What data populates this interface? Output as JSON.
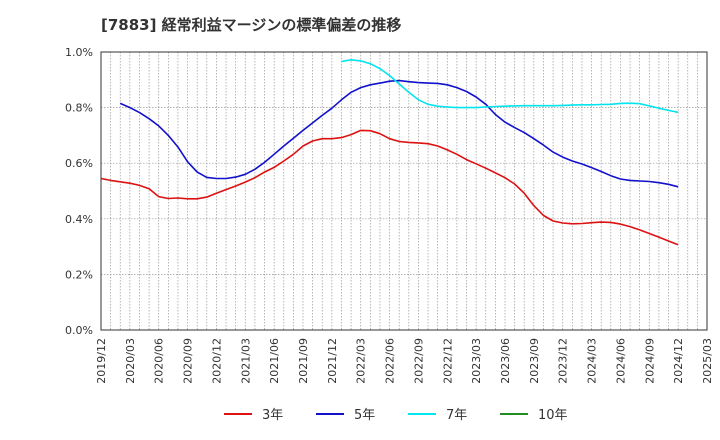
{
  "chart_data": {
    "type": "line",
    "title": "[7883]  経常利益マージンの標準偏差の推移",
    "xlabel": "",
    "ylabel": "",
    "ylim": [
      0,
      0.01
    ],
    "yticks": [
      "0.0%",
      "0.2%",
      "0.4%",
      "0.6%",
      "0.8%",
      "1.0%"
    ],
    "xticks": [
      "2019/12",
      "2020/03",
      "2020/06",
      "2020/09",
      "2020/12",
      "2021/03",
      "2021/06",
      "2021/09",
      "2021/12",
      "2022/03",
      "2022/06",
      "2022/09",
      "2022/12",
      "2023/03",
      "2023/06",
      "2023/09",
      "2023/12",
      "2024/03",
      "2024/06",
      "2024/09",
      "2024/12",
      "2025/03"
    ],
    "grid": true,
    "legend_position": "bottom",
    "series": [
      {
        "name": "3年",
        "color": "#dd1111",
        "points": [
          [
            "2019/12",
            0.00545
          ],
          [
            "2020/01",
            0.00538
          ],
          [
            "2020/02",
            0.00533
          ],
          [
            "2020/03",
            0.00528
          ],
          [
            "2020/04",
            0.0052
          ],
          [
            "2020/05",
            0.00508
          ],
          [
            "2020/06",
            0.0048
          ],
          [
            "2020/07",
            0.00473
          ],
          [
            "2020/08",
            0.00475
          ],
          [
            "2020/09",
            0.00472
          ],
          [
            "2020/10",
            0.00472
          ],
          [
            "2020/11",
            0.00478
          ],
          [
            "2020/12",
            0.00492
          ],
          [
            "2021/01",
            0.00505
          ],
          [
            "2021/02",
            0.00518
          ],
          [
            "2021/03",
            0.00532
          ],
          [
            "2021/04",
            0.00548
          ],
          [
            "2021/05",
            0.00568
          ],
          [
            "2021/06",
            0.00585
          ],
          [
            "2021/07",
            0.00608
          ],
          [
            "2021/08",
            0.00632
          ],
          [
            "2021/09",
            0.00662
          ],
          [
            "2021/10",
            0.0068
          ],
          [
            "2021/11",
            0.00688
          ],
          [
            "2021/12",
            0.00688
          ],
          [
            "2022/01",
            0.00692
          ],
          [
            "2022/02",
            0.00703
          ],
          [
            "2022/03",
            0.00718
          ],
          [
            "2022/04",
            0.00717
          ],
          [
            "2022/05",
            0.00706
          ],
          [
            "2022/06",
            0.00688
          ],
          [
            "2022/07",
            0.00678
          ],
          [
            "2022/08",
            0.00675
          ],
          [
            "2022/09",
            0.00673
          ],
          [
            "2022/10",
            0.0067
          ],
          [
            "2022/11",
            0.00662
          ],
          [
            "2022/12",
            0.00648
          ],
          [
            "2023/01",
            0.00632
          ],
          [
            "2023/02",
            0.00613
          ],
          [
            "2023/03",
            0.00598
          ],
          [
            "2023/04",
            0.00582
          ],
          [
            "2023/05",
            0.00565
          ],
          [
            "2023/06",
            0.00548
          ],
          [
            "2023/07",
            0.00525
          ],
          [
            "2023/08",
            0.00492
          ],
          [
            "2023/09",
            0.00447
          ],
          [
            "2023/10",
            0.00412
          ],
          [
            "2023/11",
            0.00392
          ],
          [
            "2023/12",
            0.00385
          ],
          [
            "2024/01",
            0.00382
          ],
          [
            "2024/02",
            0.00383
          ],
          [
            "2024/03",
            0.00386
          ],
          [
            "2024/04",
            0.00388
          ],
          [
            "2024/05",
            0.00387
          ],
          [
            "2024/06",
            0.00381
          ],
          [
            "2024/07",
            0.00372
          ],
          [
            "2024/08",
            0.0036
          ],
          [
            "2024/09",
            0.00347
          ],
          [
            "2024/10",
            0.00334
          ],
          [
            "2024/11",
            0.0032
          ],
          [
            "2024/12",
            0.00307
          ]
        ]
      },
      {
        "name": "5年",
        "color": "#1111cc",
        "points": [
          [
            "2020/02",
            0.00815
          ],
          [
            "2020/03",
            0.008
          ],
          [
            "2020/04",
            0.00782
          ],
          [
            "2020/05",
            0.0076
          ],
          [
            "2020/06",
            0.00734
          ],
          [
            "2020/07",
            0.007
          ],
          [
            "2020/08",
            0.00658
          ],
          [
            "2020/09",
            0.00605
          ],
          [
            "2020/10",
            0.00568
          ],
          [
            "2020/11",
            0.00549
          ],
          [
            "2020/12",
            0.00545
          ],
          [
            "2021/01",
            0.00545
          ],
          [
            "2021/02",
            0.0055
          ],
          [
            "2021/03",
            0.0056
          ],
          [
            "2021/04",
            0.00578
          ],
          [
            "2021/05",
            0.00603
          ],
          [
            "2021/06",
            0.00632
          ],
          [
            "2021/07",
            0.00662
          ],
          [
            "2021/08",
            0.0069
          ],
          [
            "2021/09",
            0.00718
          ],
          [
            "2021/10",
            0.00745
          ],
          [
            "2021/11",
            0.00772
          ],
          [
            "2021/12",
            0.00798
          ],
          [
            "2022/01",
            0.00828
          ],
          [
            "2022/02",
            0.00855
          ],
          [
            "2022/03",
            0.00872
          ],
          [
            "2022/04",
            0.00882
          ],
          [
            "2022/05",
            0.00888
          ],
          [
            "2022/06",
            0.00895
          ],
          [
            "2022/07",
            0.00897
          ],
          [
            "2022/08",
            0.00893
          ],
          [
            "2022/09",
            0.0089
          ],
          [
            "2022/10",
            0.00888
          ],
          [
            "2022/11",
            0.00887
          ],
          [
            "2022/12",
            0.00882
          ],
          [
            "2023/01",
            0.00872
          ],
          [
            "2023/02",
            0.00858
          ],
          [
            "2023/03",
            0.00838
          ],
          [
            "2023/04",
            0.00812
          ],
          [
            "2023/05",
            0.00775
          ],
          [
            "2023/06",
            0.00748
          ],
          [
            "2023/07",
            0.00728
          ],
          [
            "2023/08",
            0.0071
          ],
          [
            "2023/09",
            0.00688
          ],
          [
            "2023/10",
            0.00665
          ],
          [
            "2023/11",
            0.0064
          ],
          [
            "2023/12",
            0.00622
          ],
          [
            "2024/01",
            0.00608
          ],
          [
            "2024/02",
            0.00597
          ],
          [
            "2024/03",
            0.00584
          ],
          [
            "2024/04",
            0.0057
          ],
          [
            "2024/05",
            0.00555
          ],
          [
            "2024/06",
            0.00543
          ],
          [
            "2024/07",
            0.00538
          ],
          [
            "2024/08",
            0.00536
          ],
          [
            "2024/09",
            0.00534
          ],
          [
            "2024/10",
            0.0053
          ],
          [
            "2024/11",
            0.00524
          ],
          [
            "2024/12",
            0.00515
          ]
        ]
      },
      {
        "name": "7年",
        "color": "#00e5ee",
        "points": [
          [
            "2022/01",
            0.00966
          ],
          [
            "2022/02",
            0.00972
          ],
          [
            "2022/03",
            0.00968
          ],
          [
            "2022/04",
            0.00958
          ],
          [
            "2022/05",
            0.0094
          ],
          [
            "2022/06",
            0.00915
          ],
          [
            "2022/07",
            0.00885
          ],
          [
            "2022/08",
            0.00855
          ],
          [
            "2022/09",
            0.00828
          ],
          [
            "2022/10",
            0.00812
          ],
          [
            "2022/11",
            0.00805
          ],
          [
            "2022/12",
            0.00802
          ],
          [
            "2023/01",
            0.008
          ],
          [
            "2023/02",
            0.008
          ],
          [
            "2023/03",
            0.008
          ],
          [
            "2023/04",
            0.00802
          ],
          [
            "2023/05",
            0.00804
          ],
          [
            "2023/06",
            0.00805
          ],
          [
            "2023/07",
            0.00806
          ],
          [
            "2023/08",
            0.00807
          ],
          [
            "2023/09",
            0.00807
          ],
          [
            "2023/10",
            0.00807
          ],
          [
            "2023/11",
            0.00807
          ],
          [
            "2023/12",
            0.00808
          ],
          [
            "2024/01",
            0.00809
          ],
          [
            "2024/02",
            0.0081
          ],
          [
            "2024/03",
            0.0081
          ],
          [
            "2024/04",
            0.00811
          ],
          [
            "2024/05",
            0.00812
          ],
          [
            "2024/06",
            0.00815
          ],
          [
            "2024/07",
            0.00816
          ],
          [
            "2024/08",
            0.00814
          ],
          [
            "2024/09",
            0.00806
          ],
          [
            "2024/10",
            0.00798
          ],
          [
            "2024/11",
            0.0079
          ],
          [
            "2024/12",
            0.00783
          ]
        ]
      },
      {
        "name": "10年",
        "color": "#228b22",
        "points": []
      }
    ]
  }
}
